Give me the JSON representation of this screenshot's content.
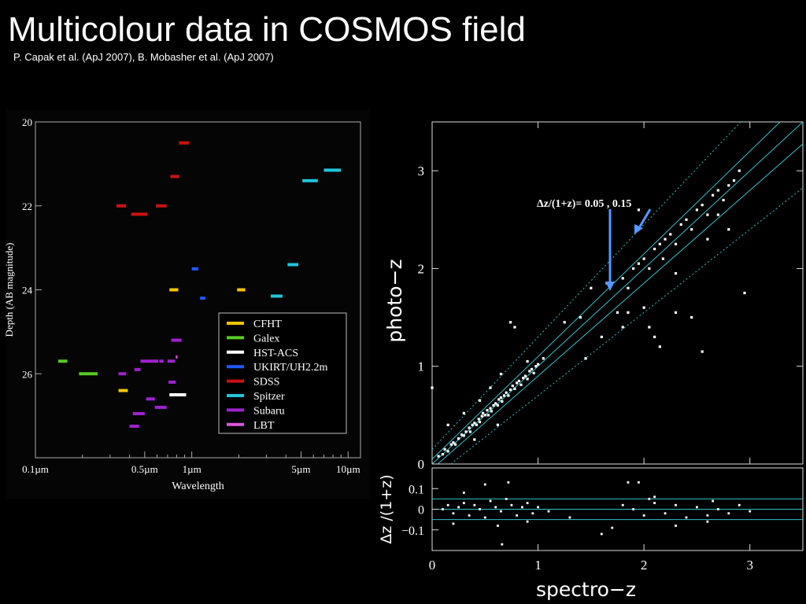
{
  "header": {
    "title": "Multicolour data in COSMOS field",
    "subtitle": "P. Capak et al. (ApJ 2007), B. Mobasher et al. (ApJ 2007)"
  },
  "chart_data": [
    {
      "type": "range-bars",
      "xlabel": "Wavelength",
      "ylabel": "Depth (AB magnitude)",
      "x_scale": "log",
      "xlim": [
        0.1,
        12
      ],
      "ylim": [
        20,
        28
      ],
      "y_inverted": true,
      "x_ticks": [
        "0.1µm",
        "0.5µm",
        "1µm",
        "5µm",
        "10µm"
      ],
      "x_tick_values": [
        0.1,
        0.5,
        1,
        5,
        10
      ],
      "y_ticks": [
        "20",
        "22",
        "24",
        "26"
      ],
      "y_tick_values": [
        20,
        22,
        24,
        26
      ],
      "legend_position": "lower-right",
      "series": [
        {
          "name": "CFHT",
          "color": "#f5c400",
          "bands": [
            [
              0.72,
              0.82,
              24.0
            ],
            [
              1.95,
              2.2,
              24.0
            ],
            [
              0.34,
              0.39,
              26.4
            ]
          ]
        },
        {
          "name": "Galex",
          "color": "#55cc22",
          "bands": [
            [
              0.14,
              0.16,
              25.7
            ],
            [
              0.19,
              0.25,
              26.0
            ]
          ]
        },
        {
          "name": "HST-ACS",
          "color": "#ffffff",
          "bands": [
            [
              0.72,
              0.92,
              26.5
            ]
          ]
        },
        {
          "name": "UKIRT/UH2.2m",
          "color": "#1e5bff",
          "bands": [
            [
              1.0,
              1.1,
              23.5
            ],
            [
              1.13,
              1.22,
              24.2
            ]
          ]
        },
        {
          "name": "SDSS",
          "color": "#cc1111",
          "bands": [
            [
              0.33,
              0.38,
              22.0
            ],
            [
              0.41,
              0.52,
              22.2
            ],
            [
              0.59,
              0.69,
              22.0
            ],
            [
              0.73,
              0.83,
              21.3
            ],
            [
              0.83,
              0.96,
              20.5
            ]
          ]
        },
        {
          "name": "Spitzer",
          "color": "#22c6dd",
          "bands": [
            [
              3.2,
              3.8,
              24.15
            ],
            [
              4.1,
              4.8,
              23.4
            ],
            [
              5.1,
              6.4,
              21.4
            ],
            [
              7.0,
              9.0,
              21.15
            ]
          ]
        },
        {
          "name": "Subaru",
          "color": "#a020d0",
          "bands": [
            [
              0.34,
              0.38,
              26.0
            ],
            [
              0.42,
              0.5,
              26.95
            ],
            [
              0.4,
              0.46,
              27.25
            ],
            [
              0.51,
              0.58,
              26.6
            ],
            [
              0.58,
              0.69,
              26.8
            ],
            [
              0.71,
              0.79,
              26.2
            ],
            [
              0.74,
              0.86,
              25.2
            ],
            [
              0.7,
              0.78,
              25.7
            ],
            [
              0.43,
              0.47,
              25.9
            ],
            [
              0.47,
              0.56,
              25.7
            ],
            [
              0.56,
              0.61,
              25.7
            ],
            [
              0.62,
              0.66,
              25.7
            ]
          ]
        },
        {
          "name": "LBT",
          "color": "#dd55dd",
          "bands": [
            [
              0.79,
              0.81,
              25.6
            ]
          ]
        }
      ]
    },
    {
      "type": "scatter",
      "xlabel": "spectro−z",
      "ylabel": "photo−z",
      "residual_ylabel": "Δz /(1+z)",
      "xlim": [
        0,
        3.5
      ],
      "ylim": [
        0,
        3.5
      ],
      "residual_ylim": [
        -0.2,
        0.2
      ],
      "x_ticks": [
        0,
        1,
        2,
        3
      ],
      "y_ticks": [
        0,
        1,
        2,
        3
      ],
      "residual_ticks": [
        "0.1",
        "0",
        "−0.1"
      ],
      "residual_tick_values": [
        0.1,
        0,
        -0.1
      ],
      "annotation": "Δz/(1+z)= 0.05 , 0.15",
      "guide_lines": {
        "solid": 0.05,
        "dotted": 0.15,
        "color": "#33c0cc"
      },
      "points": [
        [
          0.06,
          0.08
        ],
        [
          0.1,
          0.1
        ],
        [
          0.12,
          0.15
        ],
        [
          0.15,
          0.13
        ],
        [
          0.18,
          0.2
        ],
        [
          0.2,
          0.22
        ],
        [
          0.22,
          0.2
        ],
        [
          0.25,
          0.26
        ],
        [
          0.28,
          0.3
        ],
        [
          0.3,
          0.29
        ],
        [
          0.32,
          0.33
        ],
        [
          0.35,
          0.37
        ],
        [
          0.36,
          0.33
        ],
        [
          0.38,
          0.4
        ],
        [
          0.4,
          0.42
        ],
        [
          0.42,
          0.4
        ],
        [
          0.44,
          0.46
        ],
        [
          0.45,
          0.43
        ],
        [
          0.47,
          0.49
        ],
        [
          0.48,
          0.52
        ],
        [
          0.5,
          0.5
        ],
        [
          0.52,
          0.55
        ],
        [
          0.53,
          0.5
        ],
        [
          0.55,
          0.57
        ],
        [
          0.56,
          0.54
        ],
        [
          0.58,
          0.6
        ],
        [
          0.6,
          0.62
        ],
        [
          0.62,
          0.6
        ],
        [
          0.63,
          0.66
        ],
        [
          0.65,
          0.68
        ],
        [
          0.66,
          0.64
        ],
        [
          0.68,
          0.7
        ],
        [
          0.7,
          0.73
        ],
        [
          0.72,
          0.7
        ],
        [
          0.74,
          0.76
        ],
        [
          0.76,
          0.8
        ],
        [
          0.78,
          0.77
        ],
        [
          0.8,
          0.83
        ],
        [
          0.82,
          0.85
        ],
        [
          0.84,
          0.81
        ],
        [
          0.86,
          0.88
        ],
        [
          0.88,
          0.9
        ],
        [
          0.9,
          0.87
        ],
        [
          0.92,
          0.95
        ],
        [
          0.94,
          0.97
        ],
        [
          0.96,
          0.93
        ],
        [
          0.98,
          1.0
        ],
        [
          1.0,
          1.02
        ],
        [
          0.65,
          0.92
        ],
        [
          0.78,
          1.4
        ],
        [
          0.74,
          1.45
        ],
        [
          0.15,
          0.4
        ],
        [
          0.9,
          1.05
        ],
        [
          1.05,
          1.08
        ],
        [
          0.62,
          0.4
        ],
        [
          0.55,
          0.78
        ],
        [
          0.45,
          0.65
        ],
        [
          0.3,
          0.52
        ],
        [
          0.4,
          0.25
        ],
        [
          0.0,
          0.78
        ],
        [
          1.25,
          1.45
        ],
        [
          1.4,
          1.5
        ],
        [
          1.5,
          1.8
        ],
        [
          1.65,
          1.85
        ],
        [
          1.75,
          1.55
        ],
        [
          1.8,
          1.9
        ],
        [
          1.85,
          1.8
        ],
        [
          1.9,
          2.0
        ],
        [
          1.95,
          2.05
        ],
        [
          2.0,
          2.1
        ],
        [
          2.05,
          2.0
        ],
        [
          2.1,
          2.2
        ],
        [
          2.15,
          2.25
        ],
        [
          2.18,
          2.1
        ],
        [
          2.2,
          2.3
        ],
        [
          2.25,
          2.35
        ],
        [
          2.3,
          2.25
        ],
        [
          2.35,
          2.45
        ],
        [
          2.4,
          2.5
        ],
        [
          2.45,
          2.4
        ],
        [
          2.5,
          2.6
        ],
        [
          2.55,
          2.65
        ],
        [
          2.6,
          2.55
        ],
        [
          2.65,
          2.75
        ],
        [
          2.7,
          2.8
        ],
        [
          2.75,
          2.7
        ],
        [
          2.8,
          2.85
        ],
        [
          2.85,
          2.9
        ],
        [
          2.9,
          3.0
        ],
        [
          2.95,
          1.75
        ],
        [
          2.1,
          1.3
        ],
        [
          2.15,
          1.2
        ],
        [
          2.45,
          1.5
        ],
        [
          2.55,
          1.15
        ],
        [
          2.3,
          1.55
        ],
        [
          2.0,
          1.6
        ],
        [
          1.6,
          1.3
        ],
        [
          1.45,
          1.08
        ],
        [
          1.95,
          2.6
        ],
        [
          1.8,
          1.4
        ],
        [
          2.7,
          2.55
        ],
        [
          2.8,
          2.4
        ],
        [
          2.6,
          2.3
        ],
        [
          2.3,
          1.95
        ],
        [
          1.85,
          1.55
        ],
        [
          2.05,
          1.4
        ]
      ],
      "residual_points": [
        [
          0.1,
          0.0
        ],
        [
          0.15,
          0.02
        ],
        [
          0.2,
          -0.02
        ],
        [
          0.25,
          0.01
        ],
        [
          0.3,
          0.03
        ],
        [
          0.35,
          -0.03
        ],
        [
          0.4,
          0.02
        ],
        [
          0.45,
          0.0
        ],
        [
          0.5,
          -0.04
        ],
        [
          0.55,
          0.04
        ],
        [
          0.6,
          0.01
        ],
        [
          0.65,
          -0.01
        ],
        [
          0.7,
          0.05
        ],
        [
          0.75,
          0.02
        ],
        [
          0.8,
          -0.03
        ],
        [
          0.85,
          0.01
        ],
        [
          0.9,
          0.03
        ],
        [
          0.95,
          -0.02
        ],
        [
          1.0,
          0.01
        ],
        [
          0.5,
          0.12
        ],
        [
          0.62,
          -0.08
        ],
        [
          0.72,
          0.13
        ],
        [
          0.66,
          -0.17
        ],
        [
          0.3,
          0.08
        ],
        [
          0.2,
          -0.07
        ],
        [
          0.9,
          -0.06
        ],
        [
          1.1,
          -0.01
        ],
        [
          1.3,
          -0.04
        ],
        [
          1.6,
          -0.12
        ],
        [
          1.7,
          -0.09
        ],
        [
          1.8,
          0.02
        ],
        [
          1.9,
          0.0
        ],
        [
          2.0,
          -0.03
        ],
        [
          2.05,
          0.05
        ],
        [
          2.1,
          0.03
        ],
        [
          2.2,
          -0.02
        ],
        [
          2.3,
          0.02
        ],
        [
          2.4,
          -0.04
        ],
        [
          2.5,
          0.01
        ],
        [
          2.6,
          -0.03
        ],
        [
          2.65,
          0.04
        ],
        [
          2.7,
          0.0
        ],
        [
          2.8,
          -0.02
        ],
        [
          2.9,
          0.02
        ],
        [
          3.0,
          -0.01
        ],
        [
          1.85,
          0.13
        ],
        [
          1.95,
          0.13
        ],
        [
          2.1,
          0.06
        ],
        [
          2.3,
          -0.08
        ],
        [
          2.6,
          -0.06
        ]
      ]
    }
  ]
}
